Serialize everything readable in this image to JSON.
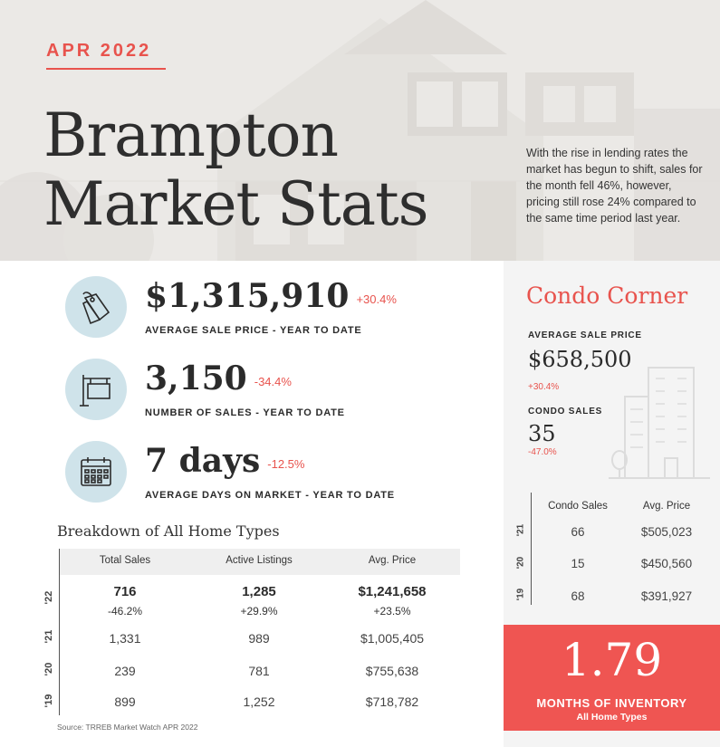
{
  "hero": {
    "date": "APR 2022",
    "title_line1": "Brampton",
    "title_line2": "Market Stats",
    "intro": "With the rise in lending rates the market has begun to shift, sales for the month fell 46%, however, pricing still rose 24% compared to the same time period last year."
  },
  "stats": [
    {
      "icon": "price-tag-icon",
      "value": "$1,315,910",
      "change": "+30.4%",
      "label": "AVERAGE SALE PRICE - YEAR TO DATE"
    },
    {
      "icon": "for-sale-sign-icon",
      "value": "3,150",
      "change": "-34.4%",
      "label": "NUMBER OF SALES - YEAR TO DATE"
    },
    {
      "icon": "calendar-icon",
      "value": "7 days",
      "change": "-12.5%",
      "label": "AVERAGE DAYS ON MARKET - YEAR TO DATE"
    }
  ],
  "breakdown": {
    "title": "Breakdown of All Home Types",
    "headers": [
      "Total Sales",
      "Active Listings",
      "Avg. Price"
    ],
    "rows": [
      {
        "year": "'22",
        "values": [
          "716",
          "1,285",
          "$1,241,658"
        ],
        "changes": [
          "-46.2%",
          "+29.9%",
          "+23.5%"
        ]
      },
      {
        "year": "'21",
        "values": [
          "1,331",
          "989",
          "$1,005,405"
        ]
      },
      {
        "year": "'20",
        "values": [
          "239",
          "781",
          "$755,638"
        ]
      },
      {
        "year": "'19",
        "values": [
          "899",
          "1,252",
          "$718,782"
        ]
      }
    ],
    "source": "Source: TRREB Market Watch APR 2022"
  },
  "condo": {
    "title": "Condo Corner",
    "avg_label": "AVERAGE SALE PRICE",
    "avg_value": "$658,500",
    "avg_change": "+30.4%",
    "sales_label": "CONDO SALES",
    "sales_value": "35",
    "sales_change": "-47.0%",
    "headers": [
      "Condo Sales",
      "Avg. Price"
    ],
    "rows": [
      {
        "year": "'21",
        "values": [
          "66",
          "$505,023"
        ]
      },
      {
        "year": "'20",
        "values": [
          "15",
          "$450,560"
        ]
      },
      {
        "year": "'19",
        "values": [
          "68",
          "$391,927"
        ]
      }
    ]
  },
  "inventory": {
    "value": "1.79",
    "label": "MONTHS OF INVENTORY",
    "sub": "All Home Types"
  },
  "colors": {
    "accent": "#e8534d",
    "icon_bg": "#cfe3ea",
    "inventory_bg": "#ef5552"
  }
}
